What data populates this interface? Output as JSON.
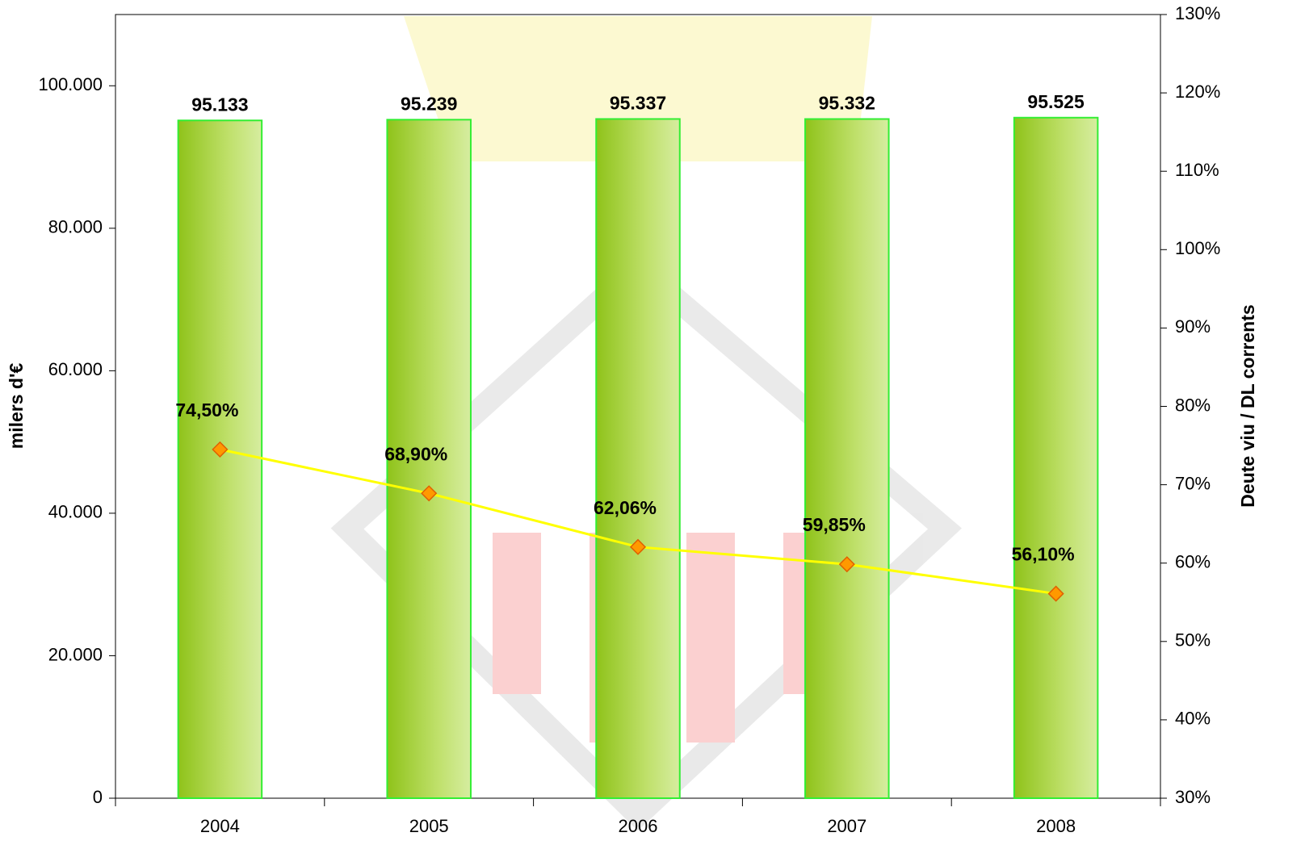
{
  "chart_data": {
    "type": "bar-line",
    "categories": [
      "2004",
      "2005",
      "2006",
      "2007",
      "2008"
    ],
    "series": [
      {
        "type": "bar",
        "color": "#99cc22",
        "values": [
          95133,
          95239,
          95337,
          95332,
          95525
        ],
        "value_labels": [
          "95.133",
          "95.239",
          "95.337",
          "95.332",
          "95.525"
        ]
      },
      {
        "type": "line",
        "axis": "y2",
        "color": "#ffff00",
        "marker_color": "#ff9900",
        "values": [
          74.5,
          68.9,
          62.06,
          59.85,
          56.1
        ],
        "value_labels": [
          "74,50%",
          "68,90%",
          "62,06%",
          "59,85%",
          "56,10%"
        ]
      }
    ],
    "ylabel": "milers d'€",
    "y2label": "Deute viu / DL corrents",
    "ylim": [
      0,
      110000
    ],
    "yticks": [
      0,
      {
        "value": 20000,
        "label": "20.000"
      },
      {
        "value": 40000,
        "label": "40.000"
      },
      {
        "value": 60000,
        "label": "60.000"
      },
      {
        "value": 80000,
        "label": "80.000"
      },
      {
        "value": 100000,
        "label": "100.000"
      }
    ],
    "y2lim": [
      30,
      130
    ],
    "y2ticks": [
      {
        "value": 30,
        "label": "30%"
      },
      {
        "value": 40,
        "label": "40%"
      },
      {
        "value": 50,
        "label": "50%"
      },
      {
        "value": 60,
        "label": "60%"
      },
      {
        "value": 70,
        "label": "70%"
      },
      {
        "value": 80,
        "label": "80%"
      },
      {
        "value": 90,
        "label": "90%"
      },
      {
        "value": 100,
        "label": "100%"
      },
      {
        "value": 110,
        "label": "110%"
      },
      {
        "value": 120,
        "label": "120%"
      },
      {
        "value": 130,
        "label": "130%"
      }
    ]
  }
}
